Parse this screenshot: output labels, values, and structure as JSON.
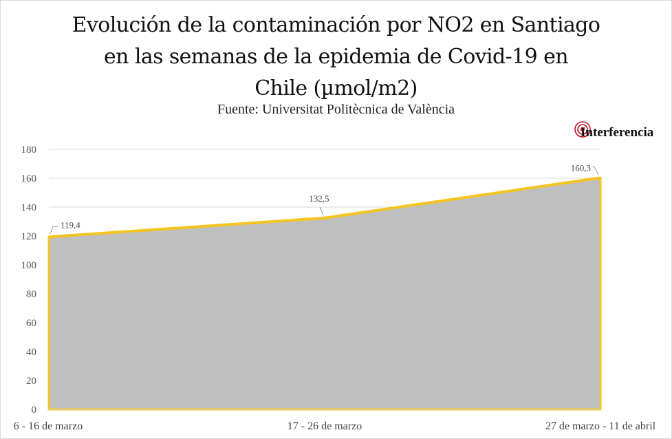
{
  "chart_data": {
    "type": "area",
    "title_lines": [
      "Evolución de la contaminación por NO2 en Santiago",
      "en las  semanas de la epidemia de Covid-19 en",
      "Chile  (µmol/m2)"
    ],
    "subtitle": "Fuente: Universitat Politècnica de València",
    "categories": [
      "6 - 16 de marzo",
      "17 - 26 de marzo",
      "27 de marzo - 11 de abril"
    ],
    "values": [
      119.4,
      132.5,
      160.3
    ],
    "data_labels": [
      "119,4",
      "132,5",
      "160,3"
    ],
    "yticks": [
      "0",
      "20",
      "40",
      "60",
      "80",
      "100",
      "120",
      "140",
      "160",
      "180"
    ],
    "ylim": [
      0,
      180
    ],
    "grid": true,
    "colors": {
      "fill": "#bfbfbf",
      "line": "#f5c41f",
      "grid": "#d9d9d9"
    }
  },
  "brand": {
    "name": "Interferencia",
    "icon": "target-circles-icon",
    "color": "#c0121f"
  }
}
